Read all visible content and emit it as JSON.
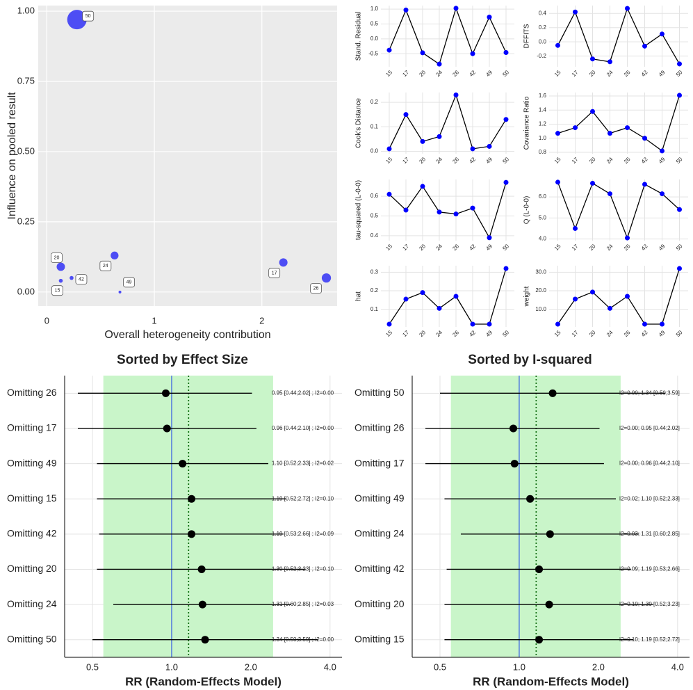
{
  "chart_data": [
    {
      "type": "bubble",
      "xlabel": "Overall heterogeneity contribution",
      "ylabel": "Influence on pooled result",
      "labels": [
        "15",
        "17",
        "20",
        "24",
        "26",
        "42",
        "49",
        "50"
      ],
      "x": [
        0.13,
        2.2,
        0.13,
        0.63,
        2.6,
        0.23,
        0.68,
        0.28
      ],
      "y": [
        0.04,
        0.105,
        0.09,
        0.13,
        0.05,
        0.05,
        0.0,
        0.97
      ],
      "sizes": [
        2,
        9,
        9,
        8,
        11,
        2,
        1,
        49
      ],
      "color": "#3c3cf5",
      "xlim": [
        -0.08,
        2.7
      ],
      "ylim": [
        -0.05,
        1.02
      ],
      "xticks": [
        0,
        1,
        2
      ],
      "yticks": [
        {
          "value": 0,
          "label": "0.00"
        },
        {
          "value": 0.25,
          "label": "0.25"
        },
        {
          "value": 0.5,
          "label": "0.50"
        },
        {
          "value": 0.75,
          "label": "0.75"
        },
        {
          "value": 1,
          "label": "1.00"
        }
      ],
      "grid": true
    },
    {
      "type": "line",
      "ylabel": "Stand. Residual",
      "categories": [
        "15",
        "17",
        "20",
        "24",
        "26",
        "42",
        "49",
        "50"
      ],
      "values": [
        -0.38,
        0.97,
        -0.47,
        -0.85,
        1.03,
        -0.5,
        0.73,
        -0.46
      ],
      "color": "#0000ff",
      "ylim": [
        -0.94,
        1.12
      ],
      "yticks": [
        -0.5,
        {
          "value": 0,
          "label": "0.0"
        },
        0.5,
        {
          "value": 1,
          "label": "1.0"
        }
      ],
      "grid": true
    },
    {
      "type": "line",
      "ylabel": "DFFITS",
      "categories": [
        "15",
        "17",
        "20",
        "24",
        "26",
        "42",
        "49",
        "50"
      ],
      "values": [
        -0.05,
        0.42,
        -0.24,
        -0.28,
        0.47,
        -0.06,
        0.11,
        -0.31
      ],
      "color": "#0000ff",
      "ylim": [
        -0.35,
        0.51
      ],
      "yticks": [
        -0.2,
        {
          "value": 0,
          "label": "0.0"
        },
        0.2,
        0.4
      ],
      "grid": true
    },
    {
      "type": "line",
      "ylabel": "Cook's Distance",
      "categories": [
        "15",
        "17",
        "20",
        "24",
        "26",
        "42",
        "49",
        "50"
      ],
      "values": [
        0.01,
        0.15,
        0.04,
        0.06,
        0.23,
        0.01,
        0.02,
        0.13
      ],
      "color": "#0000ff",
      "ylim": [
        -0.01,
        0.24
      ],
      "yticks": [
        {
          "value": 0,
          "label": "0.0"
        },
        0.1,
        0.2
      ],
      "grid": true
    },
    {
      "type": "line",
      "ylabel": "Covariance Ratio",
      "categories": [
        "15",
        "17",
        "20",
        "24",
        "26",
        "42",
        "49",
        "50"
      ],
      "values": [
        1.07,
        1.15,
        1.38,
        1.07,
        1.15,
        1.0,
        0.82,
        1.61
      ],
      "color": "#0000ff",
      "ylim": [
        0.78,
        1.65
      ],
      "yticks": [
        0.8,
        {
          "value": 1,
          "label": "1.0"
        },
        1.2,
        1.4,
        1.6
      ],
      "grid": true
    },
    {
      "type": "line",
      "ylabel": "tau-squared (L-0-0)",
      "categories": [
        "15",
        "17",
        "20",
        "24",
        "26",
        "42",
        "49",
        "50"
      ],
      "values": [
        0.61,
        0.53,
        0.65,
        0.52,
        0.51,
        0.54,
        0.39,
        0.67
      ],
      "color": "#0000ff",
      "ylim": [
        0.375,
        0.685
      ],
      "yticks": [
        0.4,
        0.5,
        0.6
      ],
      "grid": true
    },
    {
      "type": "line",
      "ylabel": "Q (L-0-0)",
      "categories": [
        "15",
        "17",
        "20",
        "24",
        "26",
        "42",
        "49",
        "50"
      ],
      "values": [
        6.7,
        4.5,
        6.65,
        6.15,
        4.05,
        6.6,
        6.15,
        5.4
      ],
      "color": "#0000ff",
      "ylim": [
        3.92,
        6.83
      ],
      "yticks": [
        {
          "value": 4,
          "label": "4.0"
        },
        {
          "value": 5,
          "label": "5.0"
        },
        {
          "value": 6,
          "label": "6.0"
        }
      ],
      "grid": true
    },
    {
      "type": "line",
      "ylabel": "hat",
      "categories": [
        "15",
        "17",
        "20",
        "24",
        "26",
        "42",
        "49",
        "50"
      ],
      "values": [
        0.02,
        0.155,
        0.19,
        0.105,
        0.17,
        0.02,
        0.02,
        0.32
      ],
      "color": "#0000ff",
      "ylim": [
        0.005,
        0.335
      ],
      "yticks": [
        0.1,
        0.2,
        0.3
      ],
      "grid": true
    },
    {
      "type": "line",
      "ylabel": "weight",
      "categories": [
        "15",
        "17",
        "20",
        "24",
        "26",
        "42",
        "49",
        "50"
      ],
      "values": [
        2,
        15.5,
        19.3,
        10.5,
        17,
        2,
        2,
        32
      ],
      "color": "#0000ff",
      "ylim": [
        0.5,
        33.5
      ],
      "yticks": [
        {
          "value": 10,
          "label": "10.0"
        },
        {
          "value": 20,
          "label": "20.0"
        },
        {
          "value": 30,
          "label": "30.0"
        }
      ],
      "grid": true
    },
    {
      "type": "forest",
      "title": "Sorted by Effect Size",
      "xlabel": "RR (Random-Effects Model)",
      "categories": [
        "Omitting 26",
        "Omitting 17",
        "Omitting 49",
        "Omitting 15",
        "Omitting 42",
        "Omitting 20",
        "Omitting 24",
        "Omitting 50"
      ],
      "values": [
        0.95,
        0.96,
        1.1,
        1.19,
        1.19,
        1.3,
        1.31,
        1.34
      ],
      "lower": [
        0.44,
        0.44,
        0.52,
        0.52,
        0.53,
        0.52,
        0.6,
        0.5
      ],
      "upper": [
        2.02,
        2.1,
        2.33,
        2.72,
        2.66,
        3.23,
        2.85,
        3.59
      ],
      "value_labels": [
        "0.95 [0.44;2.02] ; I2=0.00",
        "0.96 [0.44;2.10] ; I2=0.00",
        "1.10 [0.52;2.33] ; I2=0.02",
        "1.19 [0.52;2.72] ; I2=0.10",
        "1.19 [0.53;2.66] ; I2=0.09",
        "1.30 [0.52;3.23] ; I2=0.10",
        "1.31 [0.60;2.85] ; I2=0.03",
        "1.34 [0.50;3.59] ; I2=0.00"
      ],
      "prediction_interval": [
        0.55,
        2.43
      ],
      "pooled": 1.16,
      "reference": 1,
      "band_color": "#c9f5c9",
      "reference_color": "#4169e1",
      "pooled_color": "#006400",
      "color": "#000000",
      "log_x": true,
      "xlim": [
        0.392,
        4.44
      ],
      "xticks": [
        0.5,
        {
          "value": 1,
          "label": "1.0"
        },
        {
          "value": 2,
          "label": "2.0"
        },
        {
          "value": 4,
          "label": "4.0"
        }
      ],
      "grid": true
    },
    {
      "type": "forest",
      "title": "Sorted by I-squared",
      "xlabel": "RR (Random-Effects Model)",
      "categories": [
        "Omitting 50",
        "Omitting 26",
        "Omitting 17",
        "Omitting 49",
        "Omitting 24",
        "Omitting 42",
        "Omitting 20",
        "Omitting 15"
      ],
      "values": [
        1.34,
        0.95,
        0.96,
        1.1,
        1.31,
        1.19,
        1.3,
        1.19
      ],
      "lower": [
        0.5,
        0.44,
        0.44,
        0.52,
        0.6,
        0.53,
        0.52,
        0.52
      ],
      "upper": [
        3.59,
        2.02,
        2.1,
        2.33,
        2.85,
        2.66,
        3.23,
        2.72
      ],
      "value_labels": [
        "I2=0.00; 1.34 [0.50;3.59]",
        "I2=0.00; 0.95 [0.44;2.02]",
        "I2=0.00; 0.96 [0.44;2.10]",
        "I2=0.02; 1.10 [0.52;2.33]",
        "I2=0.03; 1.31 [0.60;2.85]",
        "I2=0.09; 1.19 [0.53;2.66]",
        "I2=0.10; 1.30 [0.52;3.23]",
        "I2=0.10; 1.19 [0.52;2.72]"
      ],
      "prediction_interval": [
        0.55,
        2.43
      ],
      "pooled": 1.16,
      "reference": 1,
      "band_color": "#c9f5c9",
      "reference_color": "#4169e1",
      "pooled_color": "#006400",
      "color": "#000000",
      "log_x": true,
      "xlim": [
        0.392,
        4.44
      ],
      "xticks": [
        0.5,
        {
          "value": 1,
          "label": "1.0"
        },
        {
          "value": 2,
          "label": "2.0"
        },
        {
          "value": 4,
          "label": "4.0"
        }
      ],
      "grid": true
    }
  ]
}
